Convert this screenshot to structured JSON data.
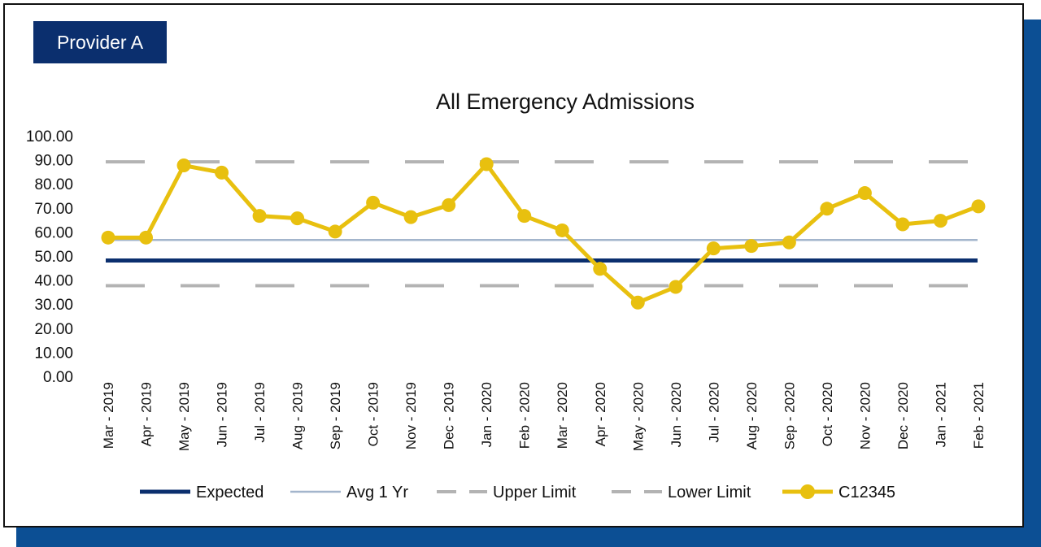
{
  "badge": {
    "label": "Provider A"
  },
  "colors": {
    "expected": "#0b2f6e",
    "avg": "#a3b5cc",
    "limits": "#b3b3b3",
    "series": "#e8c00f",
    "accent": "#0c4f94"
  },
  "chart_data": {
    "type": "line",
    "title": "All Emergency Admissions",
    "xlabel": "",
    "ylabel": "",
    "ylim": [
      0,
      100
    ],
    "ytick_step": 10,
    "ytick_labels": [
      "0.00",
      "10.00",
      "20.00",
      "30.00",
      "40.00",
      "50.00",
      "60.00",
      "70.00",
      "80.00",
      "90.00",
      "100.00"
    ],
    "grid": false,
    "legend_position": "bottom",
    "categories": [
      "Mar - 2019",
      "Apr - 2019",
      "May - 2019",
      "Jun - 2019",
      "Jul - 2019",
      "Aug - 2019",
      "Sep - 2019",
      "Oct - 2019",
      "Nov - 2019",
      "Dec - 2019",
      "Jan - 2020",
      "Feb - 2020",
      "Mar - 2020",
      "Apr - 2020",
      "May - 2020",
      "Jun - 2020",
      "Jul - 2020",
      "Aug - 2020",
      "Sep - 2020",
      "Oct - 2020",
      "Nov - 2020",
      "Dec - 2020",
      "Jan - 2021",
      "Feb - 2021"
    ],
    "series": [
      {
        "name": "Expected",
        "style": "solid-thick",
        "values": [
          48.5,
          48.5,
          48.5,
          48.5,
          48.5,
          48.5,
          48.5,
          48.5,
          48.5,
          48.5,
          48.5,
          48.5,
          48.5,
          48.5,
          48.5,
          48.5,
          48.5,
          48.5,
          48.5,
          48.5,
          48.5,
          48.5,
          48.5,
          48.5
        ]
      },
      {
        "name": "Avg 1 Yr",
        "style": "solid-thin",
        "values": [
          57,
          57,
          57,
          57,
          57,
          57,
          57,
          57,
          57,
          57,
          57,
          57,
          57,
          57,
          57,
          57,
          57,
          57,
          57,
          57,
          57,
          57,
          57,
          57
        ]
      },
      {
        "name": "Upper Limit",
        "style": "dashed",
        "values": [
          89.5,
          89.5,
          89.5,
          89.5,
          89.5,
          89.5,
          89.5,
          89.5,
          89.5,
          89.5,
          89.5,
          89.5,
          89.5,
          89.5,
          89.5,
          89.5,
          89.5,
          89.5,
          89.5,
          89.5,
          89.5,
          89.5,
          89.5,
          89.5
        ]
      },
      {
        "name": "Lower Limit",
        "style": "dashed",
        "values": [
          38,
          38,
          38,
          38,
          38,
          38,
          38,
          38,
          38,
          38,
          38,
          38,
          38,
          38,
          38,
          38,
          38,
          38,
          38,
          38,
          38,
          38,
          38,
          38
        ]
      },
      {
        "name": "C12345",
        "style": "line-markers",
        "values": [
          58,
          58,
          88,
          85,
          67,
          66,
          60.5,
          72.5,
          66.5,
          71.5,
          88.5,
          67,
          61,
          45,
          31,
          37.5,
          53.5,
          54.5,
          56,
          70,
          76.5,
          63.5,
          65,
          71
        ]
      }
    ]
  }
}
